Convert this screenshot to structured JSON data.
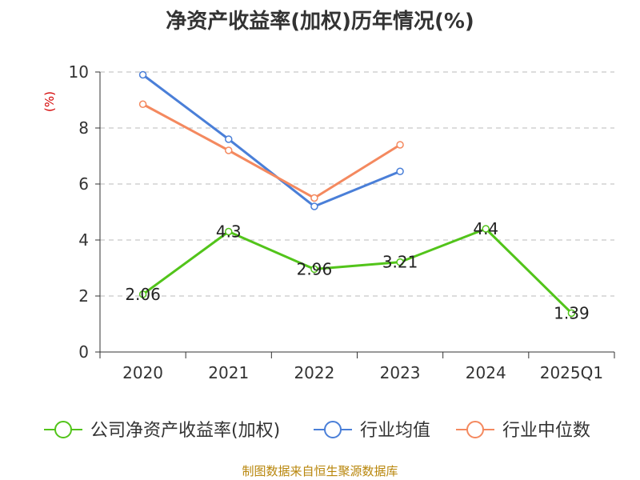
{
  "chart_data": {
    "type": "line",
    "title": "净资产收益率(加权)历年情况(%)",
    "ylabel": "(%)",
    "xlabel": "",
    "categories": [
      "2020",
      "2021",
      "2022",
      "2023",
      "2024",
      "2025Q1"
    ],
    "ylim": [
      0,
      10
    ],
    "yticks": [
      "0",
      "2",
      "4",
      "6",
      "8",
      "10"
    ],
    "series": [
      {
        "name": "公司净资产收益率(加权)",
        "color": "#52c41a",
        "values": [
          2.06,
          4.3,
          2.96,
          3.21,
          4.4,
          1.39
        ],
        "labels": [
          "2.06",
          "4.3",
          "2.96",
          "3.21",
          "4.4",
          "1.39"
        ]
      },
      {
        "name": "行业均值",
        "color": "#4a7fd8",
        "values": [
          9.9,
          7.6,
          5.2,
          6.45,
          null,
          null
        ]
      },
      {
        "name": "行业中位数",
        "color": "#f4895f",
        "values": [
          8.85,
          7.2,
          5.5,
          7.4,
          null,
          null
        ]
      }
    ],
    "grid": true,
    "legend_position": "bottom"
  },
  "source": "制图数据来自恒生聚源数据库"
}
